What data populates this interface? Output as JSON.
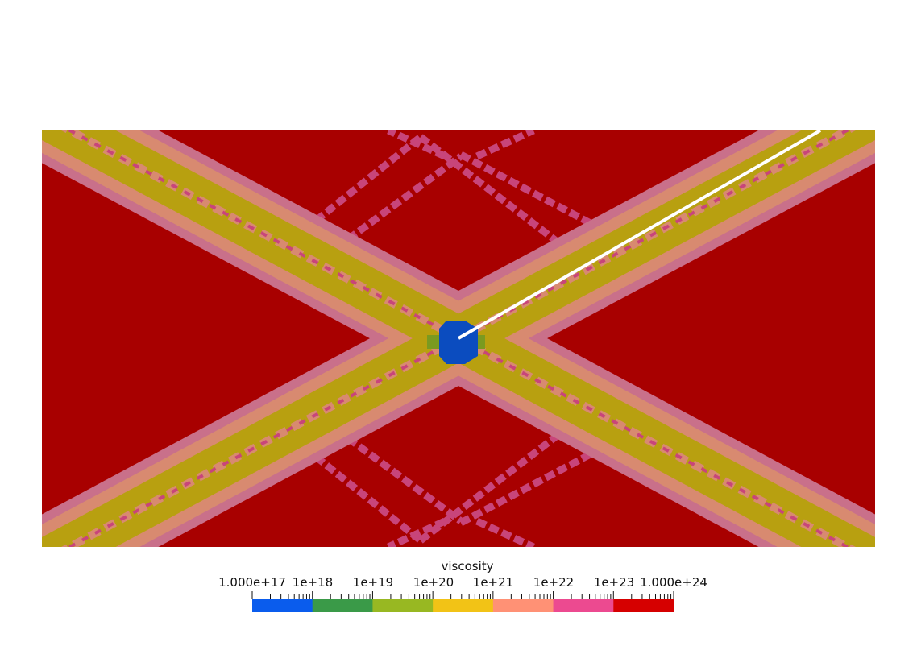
{
  "figure": {
    "type": "viscosity-field",
    "colormap": {
      "name": "viscosity",
      "scale": "log",
      "range": [
        "1.000e+17",
        "1.000e+24"
      ],
      "tick_labels": [
        "1.000e+17",
        "1e+18",
        "1e+19",
        "1e+20",
        "1e+21",
        "1e+22",
        "1e+23",
        "1.000e+24"
      ],
      "bands": [
        "#0a5ced",
        "#3a9a48",
        "#98b822",
        "#f2c316",
        "#ff9175",
        "#ec4a90",
        "#d60000"
      ]
    },
    "field_colors": {
      "background": "#a80000",
      "outer_band": "#c9708a",
      "middle_band": "#d88a70",
      "inner_band": "#b8a010",
      "thin_lines": "#c8457a",
      "inclusion": "#0b4cbf",
      "inclusion_rim": "#7a9a20",
      "probe_line": "#ffffff"
    }
  }
}
